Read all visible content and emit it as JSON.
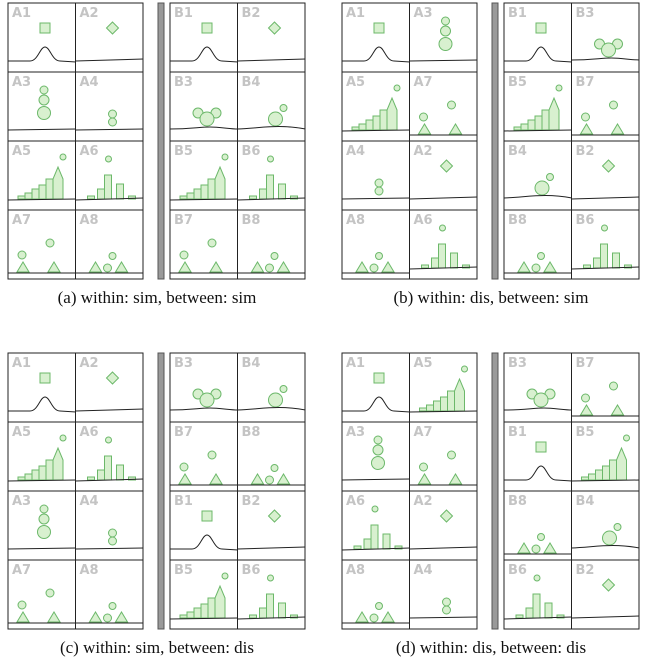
{
  "panels": [
    {
      "caption": "(a) within: sim, between: sim",
      "groups": [
        [
          "A1",
          "A2",
          "A3",
          "A4",
          "A5",
          "A6",
          "A7",
          "A8"
        ],
        [
          "B1",
          "B2",
          "B3",
          "B4",
          "B5",
          "B6",
          "B7",
          "B8"
        ]
      ]
    },
    {
      "caption": "(b) within: dis, between: sim",
      "groups": [
        [
          "A1",
          "A3",
          "A5",
          "A7",
          "A4",
          "A2",
          "A8",
          "A6"
        ],
        [
          "B1",
          "B3",
          "B5",
          "B7",
          "B4",
          "B2",
          "B8",
          "B6"
        ]
      ]
    },
    {
      "caption": "(c) within: sim, between: dis",
      "groups": [
        [
          "A1",
          "A2",
          "A5",
          "A6",
          "A3",
          "A4",
          "A7",
          "A8"
        ],
        [
          "B3",
          "B4",
          "B7",
          "B8",
          "B1",
          "B2",
          "B5",
          "B6"
        ]
      ]
    },
    {
      "caption": "(d) within: dis, between: dis",
      "groups": [
        [
          "A1",
          "A5",
          "A3",
          "A7",
          "A6",
          "A2",
          "A8",
          "A4"
        ],
        [
          "B3",
          "B7",
          "B1",
          "B5",
          "B8",
          "B4",
          "B6",
          "B2"
        ]
      ]
    }
  ]
}
